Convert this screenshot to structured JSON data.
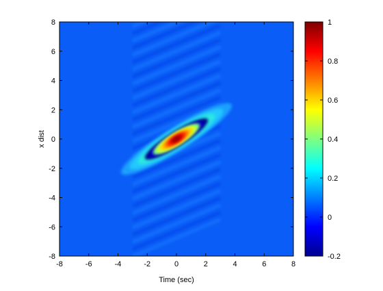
{
  "chart_data": {
    "type": "heatmap",
    "title": "",
    "xlabel": "Time (sec)",
    "ylabel": "x dist",
    "xlim": [
      -8,
      8
    ],
    "ylim": [
      -8,
      8
    ],
    "x_ticks": [
      -8,
      -6,
      -4,
      -2,
      0,
      2,
      4,
      6,
      8
    ],
    "y_ticks": [
      -8,
      -6,
      -4,
      -2,
      0,
      2,
      4,
      6,
      8
    ],
    "colorbar": {
      "range": [
        -0.2,
        1
      ],
      "ticks": [
        -0.2,
        0,
        0.2,
        0.4,
        0.6,
        0.8,
        1
      ],
      "colormap": "jet"
    },
    "background_value": 0,
    "features": [
      {
        "kind": "gaussian-peak",
        "peak_value": 1,
        "center": [
          0,
          0
        ],
        "orientation": "rising diagonal from (-4, -2.5) to (4, 2.5)",
        "length": 8.5,
        "width": 1.1
      },
      {
        "kind": "diagonal-fringes",
        "min_value": -0.12,
        "x_extent": [
          -3,
          3
        ],
        "y_extent": [
          -8,
          8
        ]
      }
    ]
  }
}
